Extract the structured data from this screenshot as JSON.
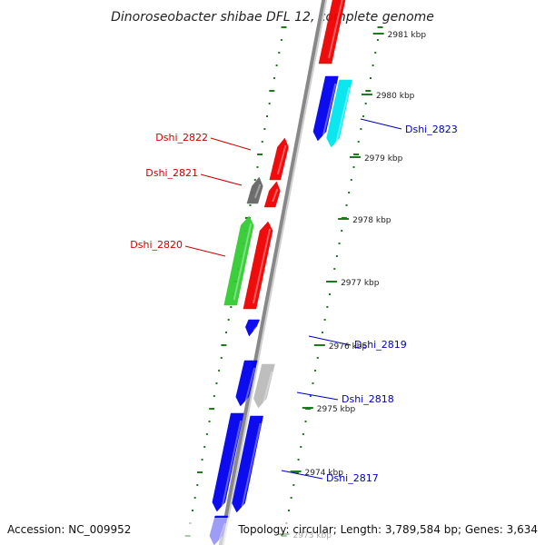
{
  "title": "Dinoroseobacter shibae DFL 12, complete genome",
  "accession": "Accession: NC_009952",
  "summary": "Topology: circular; Length: 3,789,584 bp; Genes: 3,634",
  "colors": {
    "background": "#ffffff",
    "backbone": "#888888",
    "backbone_highlight": "#cfcfcf",
    "tick": "#1f7a1f",
    "label_left": "#cc0000",
    "label_right": "#0000bb"
  },
  "kbp_labels": [
    "2981 kbp",
    "2980 kbp",
    "2979 kbp",
    "2978 kbp",
    "2977 kbp",
    "2976 kbp",
    "2975 kbp",
    "2974 kbp",
    "2973 kbp"
  ],
  "genes": [
    {
      "name": "",
      "color": "#ee0000",
      "strand": "+"
    },
    {
      "name": "",
      "color": "#0000ee",
      "strand": "-"
    },
    {
      "name": "Dshi_2823",
      "color": "#00e5ee",
      "strand": "-"
    },
    {
      "name": "Dshi_2822",
      "color": "#ee0000",
      "strand": "+"
    },
    {
      "name": "Dshi_2821",
      "color": "#666666",
      "strand": "+"
    },
    {
      "name": "",
      "color": "#ee0000",
      "strand": "+"
    },
    {
      "name": "Dshi_2820",
      "color": "#33cc33",
      "strand": "+"
    },
    {
      "name": "",
      "color": "#ee0000",
      "strand": "+"
    },
    {
      "name": "Dshi_2819",
      "color": "#0000ee",
      "strand": "-"
    },
    {
      "name": "",
      "color": "#0000ee",
      "strand": "-"
    },
    {
      "name": "Dshi_2818",
      "color": "#bbbbbb",
      "strand": "-"
    },
    {
      "name": "",
      "color": "#0000ee",
      "strand": "-"
    },
    {
      "name": "Dshi_2817",
      "color": "#0000ee",
      "strand": "-"
    },
    {
      "name": "",
      "color": "#0000ee",
      "strand": "-"
    }
  ]
}
